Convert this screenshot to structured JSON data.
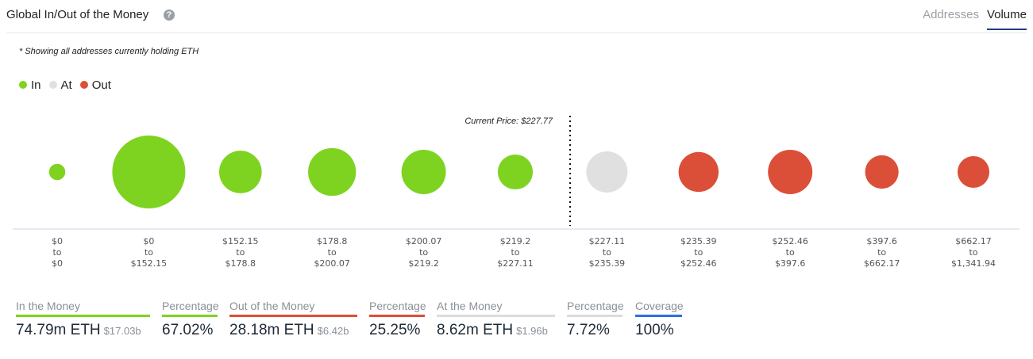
{
  "header": {
    "title": "Global In/Out of the Money",
    "help_icon": "?",
    "tabs": [
      {
        "label": "Addresses",
        "active": false
      },
      {
        "label": "Volume",
        "active": true
      }
    ]
  },
  "note": "* Showing all addresses currently holding ETH",
  "chart_data": {
    "type": "bubble",
    "legend": [
      {
        "name": "In",
        "color": "#7ed321"
      },
      {
        "name": "At",
        "color": "#e0e0e0"
      },
      {
        "name": "Out",
        "color": "#db4f38"
      }
    ],
    "current_price_label": "Current Price: $227.77",
    "current_price": 227.77,
    "buckets": [
      {
        "from": "$0",
        "to": "$0",
        "status": "In",
        "relative_volume": 5
      },
      {
        "from": "$0",
        "to": "$152.15",
        "status": "In",
        "relative_volume": 100
      },
      {
        "from": "$152.15",
        "to": "$178.8",
        "status": "In",
        "relative_volume": 34
      },
      {
        "from": "$178.8",
        "to": "$200.07",
        "status": "In",
        "relative_volume": 43
      },
      {
        "from": "$200.07",
        "to": "$219.2",
        "status": "In",
        "relative_volume": 37
      },
      {
        "from": "$219.2",
        "to": "$227.11",
        "status": "In",
        "relative_volume": 23
      },
      {
        "from": "$227.11",
        "to": "$235.39",
        "status": "At",
        "relative_volume": 32
      },
      {
        "from": "$235.39",
        "to": "$252.46",
        "status": "Out",
        "relative_volume": 30
      },
      {
        "from": "$252.46",
        "to": "$397.6",
        "status": "Out",
        "relative_volume": 37
      },
      {
        "from": "$397.6",
        "to": "$662.17",
        "status": "Out",
        "relative_volume": 21
      },
      {
        "from": "$662.17",
        "to": "$1,341.94",
        "status": "Out",
        "relative_volume": 19
      }
    ],
    "to_word": "to"
  },
  "stats": [
    {
      "label": "In the Money",
      "value": "74.79m ETH",
      "sub": "$17.03b",
      "color": "#7ed321"
    },
    {
      "label": "Percentage",
      "value": "67.02%",
      "sub": "",
      "color": "#7ed321"
    },
    {
      "label": "Out of the Money",
      "value": "28.18m ETH",
      "sub": "$6.42b",
      "color": "#db4f38"
    },
    {
      "label": "Percentage",
      "value": "25.25%",
      "sub": "",
      "color": "#db4f38"
    },
    {
      "label": "At the Money",
      "value": "8.62m ETH",
      "sub": "$1.96b",
      "color": "#dcdcdc"
    },
    {
      "label": "Percentage",
      "value": "7.72%",
      "sub": "",
      "color": "#dcdcdc"
    },
    {
      "label": "Coverage",
      "value": "100%",
      "sub": "",
      "color": "#2f6fde"
    }
  ]
}
